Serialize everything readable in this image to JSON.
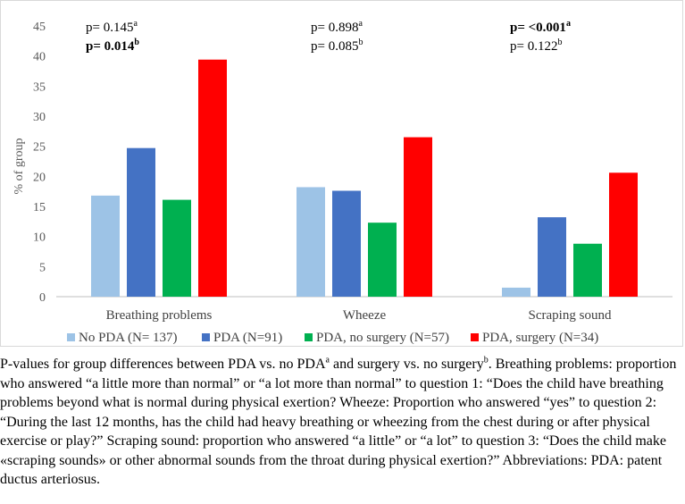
{
  "chart_data": {
    "type": "bar",
    "ylabel": "% of group",
    "xlabel": "",
    "ylim": [
      0,
      45
    ],
    "yticks": [
      0,
      5,
      10,
      15,
      20,
      25,
      30,
      35,
      40,
      45
    ],
    "grid": false,
    "legend_position": "bottom",
    "categories": [
      "Breathing problems",
      "Wheeze",
      "Scraping sound"
    ],
    "series": [
      {
        "name": "No PDA (N= 137)",
        "color": "#9dc3e6",
        "values": [
          16.8,
          18.2,
          1.5
        ]
      },
      {
        "name": "PDA (N=91)",
        "color": "#4472c4",
        "values": [
          24.7,
          17.6,
          13.2
        ]
      },
      {
        "name": "PDA, no surgery (N=57)",
        "color": "#00b050",
        "values": [
          16.1,
          12.3,
          8.8
        ]
      },
      {
        "name": "PDA, surgery (N=34)",
        "color": "#ff0000",
        "values": [
          39.4,
          26.5,
          20.6
        ]
      }
    ],
    "annotations": [
      {
        "category": "Breathing problems",
        "line1": "p= 0.145",
        "line1_sup": "a",
        "line1_bold": false,
        "line2": "p= 0.014",
        "line2_sup": "b",
        "line2_bold": true
      },
      {
        "category": "Wheeze",
        "line1": "p= 0.898",
        "line1_sup": "a",
        "line1_bold": false,
        "line2": "p= 0.085",
        "line2_sup": "b",
        "line2_bold": false
      },
      {
        "category": "Scraping sound",
        "line1": "p= <0.001",
        "line1_sup": "a",
        "line1_bold": true,
        "line2": "p= 0.122",
        "line2_sup": "b",
        "line2_bold": false
      }
    ]
  },
  "caption": {
    "part1": "P-values for group differences between PDA vs. no PDA",
    "sup1": "a",
    "part2": " and surgery vs. no surgery",
    "sup2": "b",
    "part3": ". Breathing problems: proportion who answered “a little more than normal” or “a lot more than normal” to question 1: “Does the child have breathing problems beyond what is normal during physical exertion? Wheeze: Proportion who answered “yes” to question 2: “During the last 12 months, has the child had heavy breathing or wheezing from the chest during or after physical exercise or play?” Scraping sound: proportion who answered “a little” or “a lot” to question 3: “Does the child make «scraping sounds» or other abnormal sounds from the throat during physical exertion?” Abbreviations: PDA: patent ductus arteriosus."
  }
}
